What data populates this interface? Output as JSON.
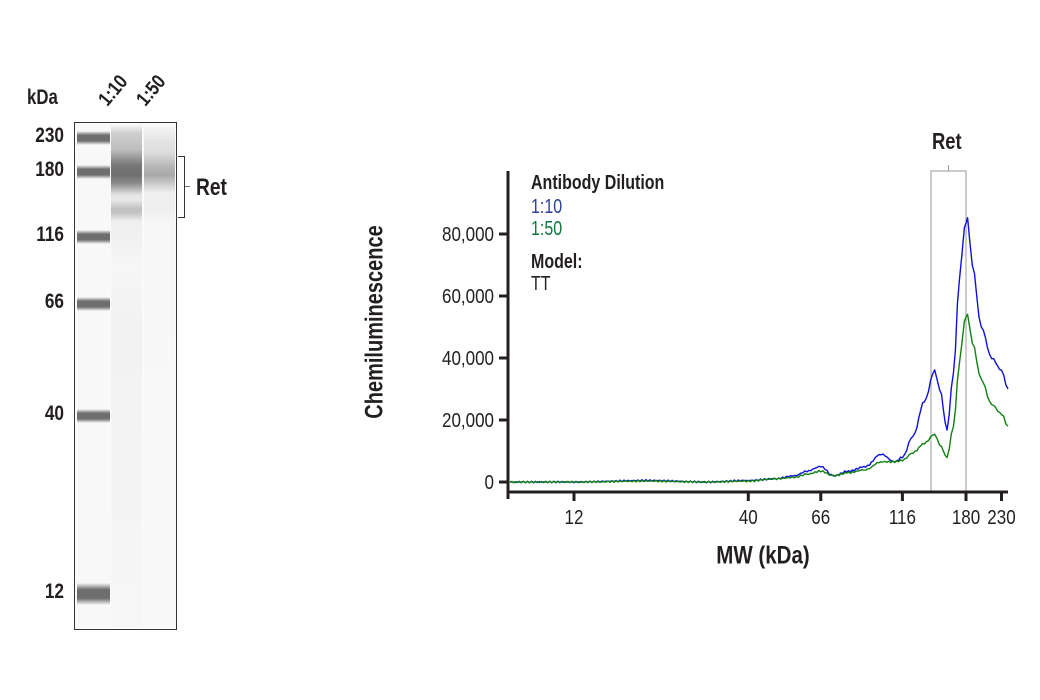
{
  "blot": {
    "unit_label": "kDa",
    "lane_labels": [
      "1:10",
      "1:50"
    ],
    "markers": [
      {
        "label": "230",
        "y": 137
      },
      {
        "label": "180",
        "y": 171
      },
      {
        "label": "116",
        "y": 236
      },
      {
        "label": "66",
        "y": 303
      },
      {
        "label": "40",
        "y": 415
      },
      {
        "label": "12",
        "y": 593
      }
    ],
    "target_label": "Ret"
  },
  "chart_data": {
    "type": "line",
    "title": "",
    "xlabel": "MW (kDa)",
    "ylabel": "Chemiluminescence",
    "x_scale": "log",
    "x_ticks": [
      "12",
      "40",
      "66",
      "116",
      "180",
      "230"
    ],
    "y_ticks": [
      "0",
      "20,000",
      "40,000",
      "60,000",
      "80,000"
    ],
    "ylim": [
      0,
      90000
    ],
    "grid": false,
    "legend": {
      "title": "Antibody Dilution",
      "position": "upper-left",
      "entries": [
        {
          "label": "1:10",
          "color": "#2b3fa0"
        },
        {
          "label": "1:50",
          "color": "#0b7a3a"
        }
      ],
      "model_title": "Model:",
      "model_value": "TT"
    },
    "annotation": {
      "label": "Ret",
      "x_range_kDa": [
        145,
        180
      ]
    },
    "series": [
      {
        "name": "1:10",
        "color": "#1010e0",
        "x": [
          8,
          12,
          20,
          30,
          40,
          48,
          55,
          60,
          66,
          72,
          80,
          90,
          100,
          110,
          116,
          125,
          135,
          145,
          150,
          158,
          165,
          172,
          178,
          182,
          188,
          200,
          215,
          230,
          250
        ],
        "values": [
          0,
          0,
          500,
          0,
          500,
          1000,
          2000,
          3500,
          5000,
          2000,
          3500,
          5000,
          9000,
          6500,
          8000,
          15000,
          26000,
          36000,
          30000,
          17000,
          35000,
          65000,
          82000,
          85000,
          70000,
          50000,
          40000,
          36000,
          30000
        ]
      },
      {
        "name": "1:50",
        "color": "#108010",
        "x": [
          8,
          12,
          20,
          30,
          40,
          48,
          55,
          60,
          66,
          72,
          80,
          90,
          100,
          110,
          116,
          125,
          135,
          145,
          150,
          158,
          165,
          172,
          178,
          182,
          188,
          200,
          215,
          230,
          250
        ],
        "values": [
          0,
          0,
          300,
          0,
          300,
          1000,
          1500,
          2500,
          3500,
          2000,
          3000,
          4000,
          6500,
          6500,
          7000,
          9500,
          12500,
          15500,
          12000,
          8000,
          18000,
          38000,
          52000,
          54000,
          45000,
          33000,
          25000,
          22000,
          18000
        ]
      }
    ]
  }
}
